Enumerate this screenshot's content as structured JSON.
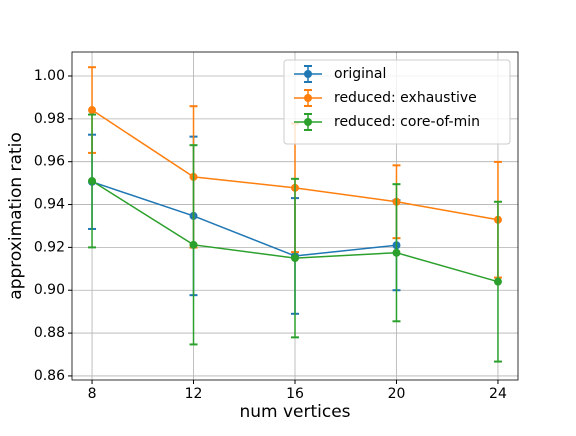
{
  "chart_data": {
    "type": "errorbar-line",
    "xlabel": "num vertices",
    "ylabel": "approximation  ratio",
    "x": [
      8,
      12,
      16,
      20,
      24
    ],
    "series": [
      {
        "name": "original",
        "color": "#1f77b4",
        "values": [
          0.9506,
          0.9347,
          0.916,
          0.921,
          null
        ],
        "errors": [
          0.022,
          0.037,
          0.027,
          0.021,
          null
        ]
      },
      {
        "name": "reduced: exhaustive",
        "color": "#ff7f0e",
        "values": [
          0.9841,
          0.9529,
          0.9478,
          0.9413,
          0.9329
        ],
        "errors": [
          0.02,
          0.033,
          0.03,
          0.017,
          0.027
        ]
      },
      {
        "name": "reduced: core-of-min",
        "color": "#2ca02c",
        "values": [
          0.951,
          0.9212,
          0.915,
          0.9175,
          0.904
        ],
        "errors": [
          0.031,
          0.0465,
          0.037,
          0.032,
          0.0373
        ]
      }
    ],
    "xlim": [
      7.21,
      24.79
    ],
    "xticks": [
      8,
      12,
      16,
      20,
      24
    ],
    "ylim": [
      0.8581,
      1.0112
    ],
    "yticks": [
      0.86,
      0.88,
      {
        "value": 0.9,
        "label": "0.90"
      },
      0.92,
      0.94,
      0.96,
      0.98,
      {
        "value": 1,
        "label": "1.00"
      }
    ],
    "grid": true,
    "legend": "upper right"
  }
}
